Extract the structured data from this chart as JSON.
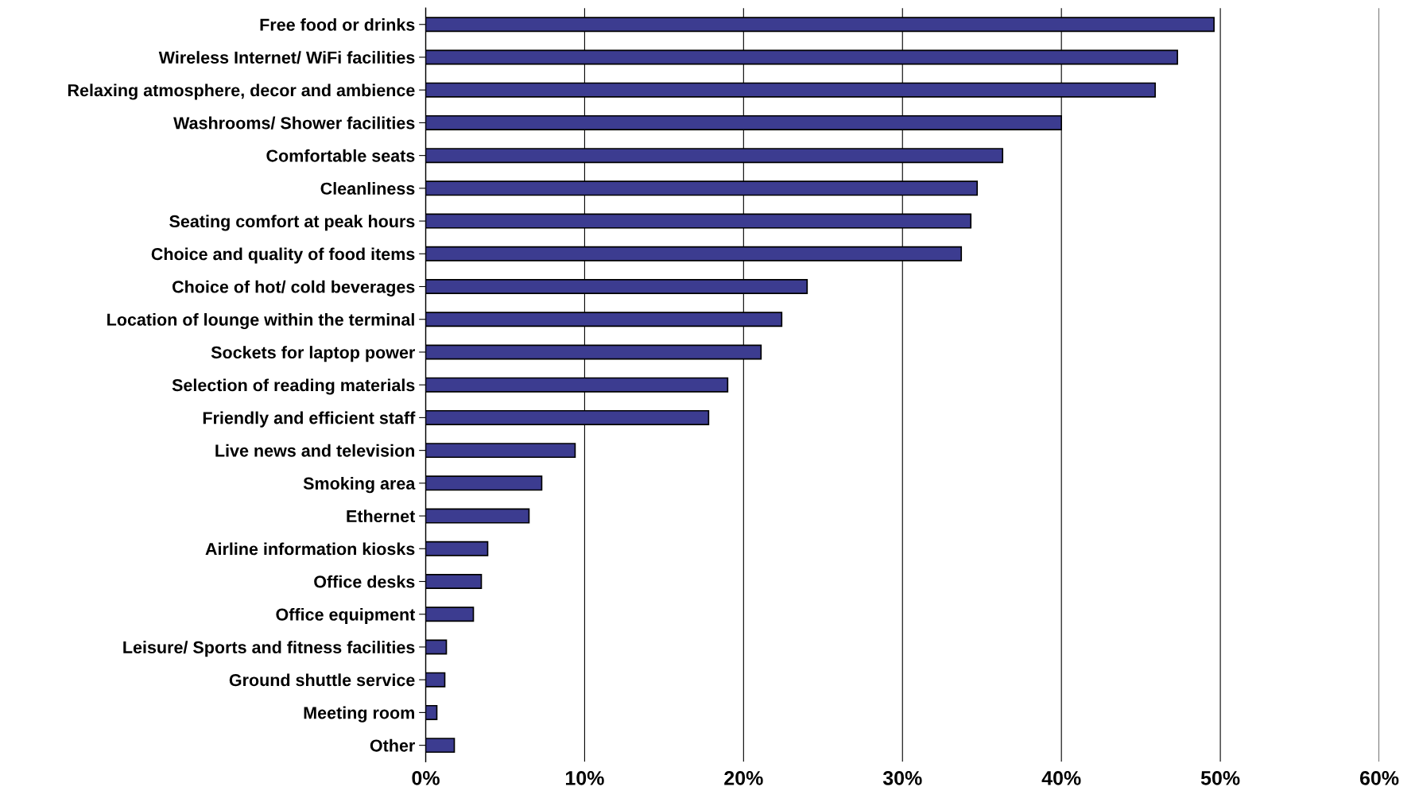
{
  "chart_data": {
    "type": "bar",
    "orientation": "horizontal",
    "categories": [
      "Free food or drinks",
      "Wireless Internet/ WiFi facilities",
      "Relaxing atmosphere, decor and ambience",
      "Washrooms/ Shower facilities",
      "Comfortable seats",
      "Cleanliness",
      "Seating comfort at peak hours",
      "Choice and quality of food items",
      "Choice of hot/ cold beverages",
      "Location of lounge within the terminal",
      "Sockets for laptop power",
      "Selection of reading materials",
      "Friendly and efficient staff",
      "Live news and television",
      "Smoking area",
      "Ethernet",
      "Airline information kiosks",
      "Office desks",
      "Office equipment",
      "Leisure/ Sports and fitness facilities",
      "Ground shuttle service",
      "Meeting room",
      "Other"
    ],
    "values": [
      49.6,
      47.3,
      45.9,
      40.0,
      36.3,
      34.7,
      34.3,
      33.7,
      24.0,
      22.4,
      21.1,
      19.0,
      17.8,
      9.4,
      7.3,
      6.5,
      3.9,
      3.5,
      3.0,
      1.3,
      1.2,
      0.7,
      1.8
    ],
    "color": "#3c3c90",
    "xlim": [
      0,
      60
    ],
    "xticks": [
      {
        "value": 0,
        "label": "0%"
      },
      {
        "value": 10,
        "label": "10%"
      },
      {
        "value": 20,
        "label": "20%"
      },
      {
        "value": 30,
        "label": "30%"
      },
      {
        "value": 40,
        "label": "40%"
      },
      {
        "value": 50,
        "label": "50%"
      },
      {
        "value": 60,
        "label": "60%"
      }
    ],
    "grid": "x"
  }
}
